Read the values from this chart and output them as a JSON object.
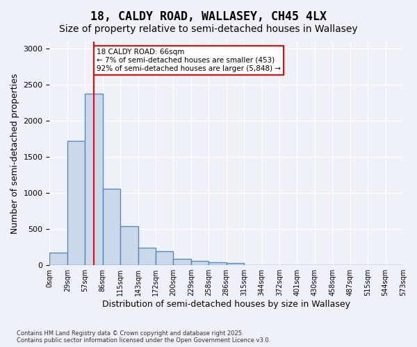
{
  "title_line1": "18, CALDY ROAD, WALLASEY, CH45 4LX",
  "title_line2": "Size of property relative to semi-detached houses in Wallasey",
  "xlabel": "Distribution of semi-detached houses by size in Wallasey",
  "ylabel": "Number of semi-detached properties",
  "bar_color": "#c9d9eb",
  "bar_edge_color": "#5b8aba",
  "bar_edge_width": 1.0,
  "vline_color": "red",
  "vline_x": 2.5,
  "annotation_text": "18 CALDY ROAD: 66sqm\n← 7% of semi-detached houses are smaller (453)\n92% of semi-detached houses are larger (5,848) →",
  "annotation_box_color": "white",
  "annotation_box_edge": "red",
  "bin_labels": [
    "0sqm",
    "29sqm",
    "57sqm",
    "86sqm",
    "115sqm",
    "143sqm",
    "172sqm",
    "200sqm",
    "229sqm",
    "258sqm",
    "286sqm",
    "315sqm",
    "344sqm",
    "372sqm",
    "401sqm",
    "430sqm",
    "458sqm",
    "487sqm",
    "515sqm",
    "544sqm",
    "573sqm"
  ],
  "values": [
    175,
    1720,
    2380,
    1060,
    540,
    240,
    190,
    90,
    55,
    45,
    30,
    0,
    0,
    0,
    0,
    0,
    0,
    0,
    0,
    0
  ],
  "ylim": [
    0,
    3100
  ],
  "yticks": [
    0,
    500,
    1000,
    1500,
    2000,
    2500,
    3000
  ],
  "background_color": "#eef2f8",
  "grid_color": "#ffffff",
  "footnote": "Contains HM Land Registry data © Crown copyright and database right 2025.\nContains public sector information licensed under the Open Government Licence v3.0.",
  "title_fontsize": 12,
  "subtitle_fontsize": 10,
  "tick_fontsize": 7,
  "axis_label_fontsize": 9
}
